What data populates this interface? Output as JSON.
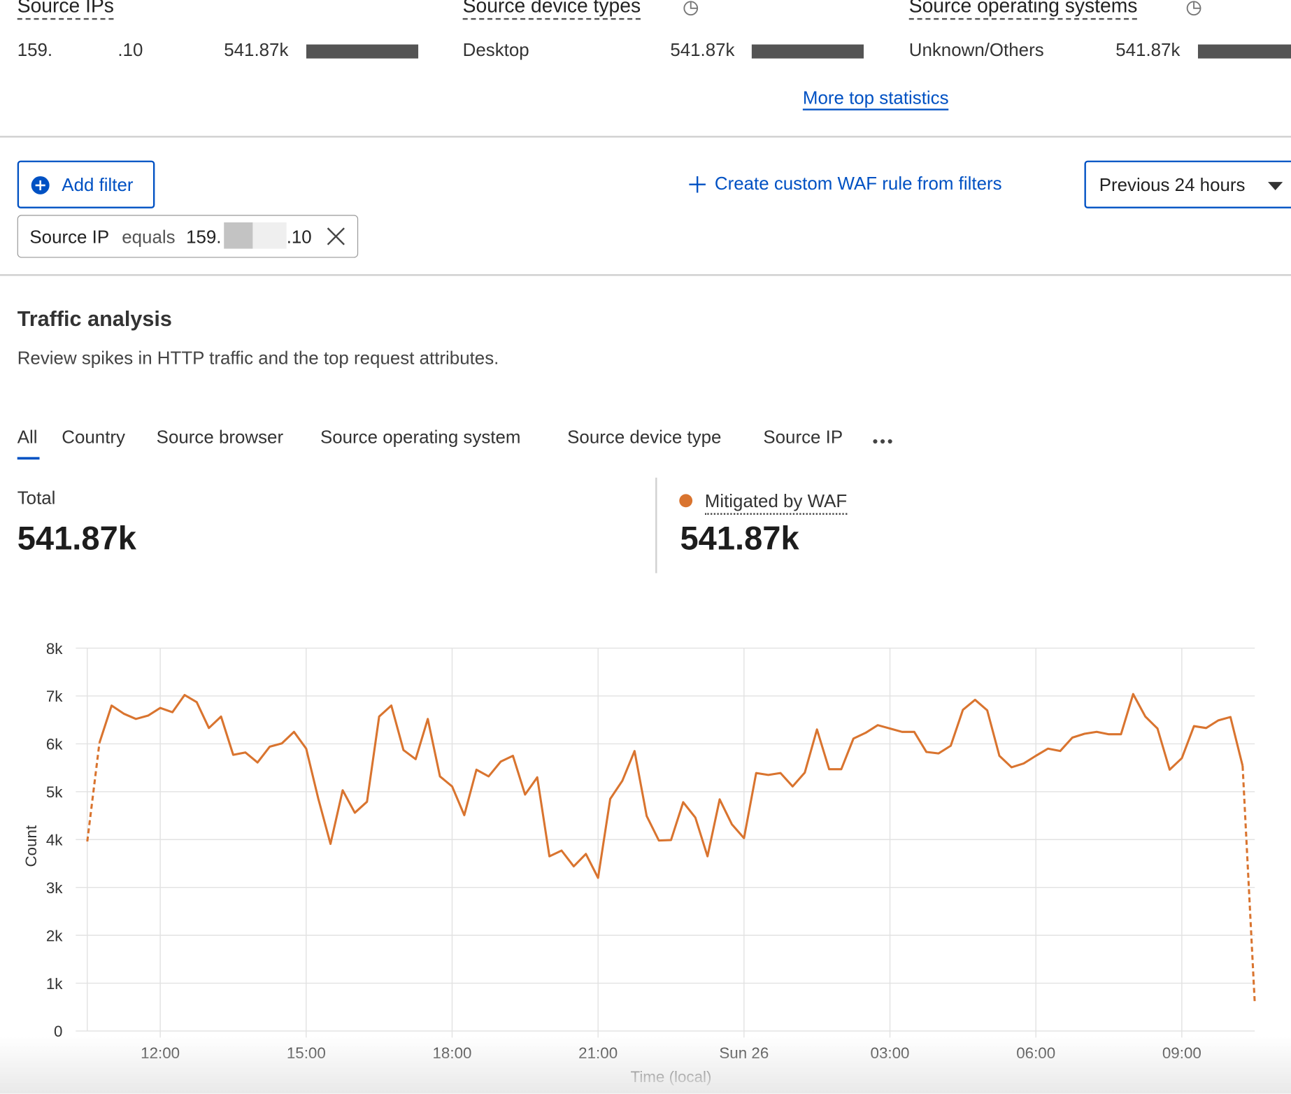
{
  "top_stats": [
    {
      "title": "Source IPs",
      "label_start": "159.",
      "label_end": ".10",
      "value": "541.87k"
    },
    {
      "title": "Source device types",
      "label": "Desktop",
      "value": "541.87k"
    },
    {
      "title": "Source operating systems",
      "label": "Unknown/Others",
      "value": "541.87k"
    }
  ],
  "more_link": "More top statistics",
  "add_filter": "Add filter",
  "create_rule": "Create custom WAF rule from filters",
  "time_range": "Previous 24 hours",
  "filter_chip": {
    "field": "Source IP",
    "operator": "equals",
    "value_start": "159.",
    "value_end": ".10"
  },
  "section": {
    "title": "Traffic analysis",
    "description": "Review spikes in HTTP traffic and the top request attributes."
  },
  "tabs": [
    "All",
    "Country",
    "Source browser",
    "Source operating system",
    "Source device type",
    "Source IP"
  ],
  "totals": {
    "total_label": "Total",
    "total_value": "541.87k",
    "mitigated_label": "Mitigated by WAF",
    "mitigated_value": "541.87k"
  },
  "chart_data": {
    "type": "line",
    "x_label": "Time (local)",
    "y_label": "Count",
    "color": "#d9742f",
    "grid": true,
    "dashed_ends": true,
    "ylim": [
      0,
      8000
    ],
    "yticks": [
      0,
      {
        "value": 1000,
        "label": "1k"
      },
      {
        "value": 2000,
        "label": "2k"
      },
      {
        "value": 3000,
        "label": "3k"
      },
      {
        "value": 4000,
        "label": "4k"
      },
      {
        "value": 5000,
        "label": "5k"
      },
      {
        "value": 6000,
        "label": "6k"
      },
      {
        "value": 7000,
        "label": "7k"
      },
      {
        "value": 8000,
        "label": "8k"
      }
    ],
    "categories": [
      null,
      null,
      null,
      null,
      null,
      null,
      "12:00",
      null,
      null,
      null,
      null,
      null,
      null,
      null,
      null,
      null,
      null,
      null,
      "15:00",
      null,
      null,
      null,
      null,
      null,
      null,
      null,
      null,
      null,
      null,
      null,
      "18:00",
      null,
      null,
      null,
      null,
      null,
      null,
      null,
      null,
      null,
      null,
      null,
      "21:00",
      null,
      null,
      null,
      null,
      null,
      null,
      null,
      null,
      null,
      null,
      null,
      "Sun 26",
      null,
      null,
      null,
      null,
      null,
      null,
      null,
      null,
      null,
      null,
      null,
      "03:00",
      null,
      null,
      null,
      null,
      null,
      null,
      null,
      null,
      null,
      null,
      null,
      "06:00",
      null,
      null,
      null,
      null,
      null,
      null,
      null,
      null,
      null,
      null,
      null,
      "09:00",
      null,
      null,
      null,
      null,
      null,
      null
    ],
    "values": [
      3960,
      6020,
      6800,
      6630,
      6520,
      6590,
      6750,
      6660,
      7020,
      6870,
      6330,
      6570,
      5770,
      5820,
      5610,
      5940,
      6010,
      6250,
      5900,
      4850,
      3910,
      5030,
      4560,
      4790,
      6570,
      6800,
      5870,
      5680,
      6520,
      5320,
      5110,
      4510,
      5460,
      5320,
      5630,
      5750,
      4940,
      5300,
      3650,
      3770,
      3440,
      3700,
      3200,
      4850,
      5230,
      5850,
      4490,
      3980,
      3990,
      4780,
      4460,
      3650,
      4840,
      4320,
      4030,
      5390,
      5350,
      5390,
      5110,
      5400,
      6300,
      5470,
      5470,
      6110,
      6230,
      6390,
      6320,
      6250,
      6250,
      5830,
      5800,
      5960,
      6710,
      6920,
      6700,
      5750,
      5510,
      5590,
      5750,
      5900,
      5850,
      6130,
      6210,
      6250,
      6200,
      6200,
      7040,
      6570,
      6320,
      5460,
      5700,
      6370,
      6330,
      6490,
      6560,
      5540,
      580
    ]
  }
}
